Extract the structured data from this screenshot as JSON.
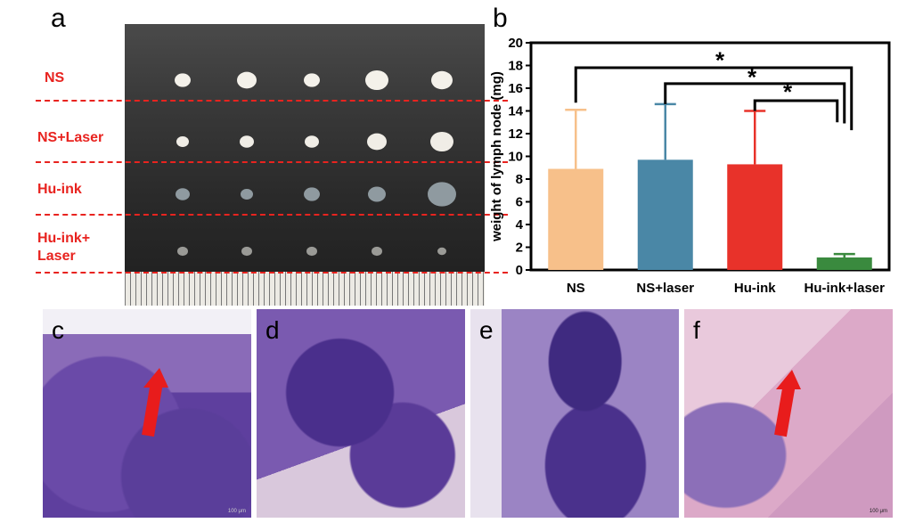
{
  "panels": {
    "a": "a",
    "b": "b",
    "c": "c",
    "d": "d",
    "e": "e",
    "f": "f"
  },
  "photo_groups": [
    "NS",
    "NS+Laser",
    "Hu-ink",
    "Hu-ink+",
    "Laser"
  ],
  "colors": {
    "ns": "#f7c08a",
    "ns_laser": "#4a87a6",
    "hu_ink": "#e8322a",
    "hu_ink_laser": "#3a8a3e",
    "annotation": "#e8231f"
  },
  "scale_bars": {
    "c": "100 μm",
    "f": "100 μm"
  },
  "chart_data": {
    "type": "bar",
    "categories": [
      "NS",
      "NS+laser",
      "Hu-ink",
      "Hu-ink+laser"
    ],
    "values": [
      8.9,
      9.7,
      9.3,
      1.1
    ],
    "error_upper": [
      14.1,
      14.6,
      14.0,
      1.4
    ],
    "ylabel": "weight of lymph node (mg)",
    "xlabel": "",
    "ylim": [
      0,
      20
    ],
    "yticks": [
      0,
      2,
      4,
      6,
      8,
      10,
      12,
      14,
      16,
      18,
      20
    ],
    "significance": [
      {
        "from": "NS",
        "to": "Hu-ink+laser",
        "label": "*"
      },
      {
        "from": "NS+laser",
        "to": "Hu-ink+laser",
        "label": "*"
      },
      {
        "from": "Hu-ink",
        "to": "Hu-ink+laser",
        "label": "*"
      }
    ],
    "grid": false
  }
}
